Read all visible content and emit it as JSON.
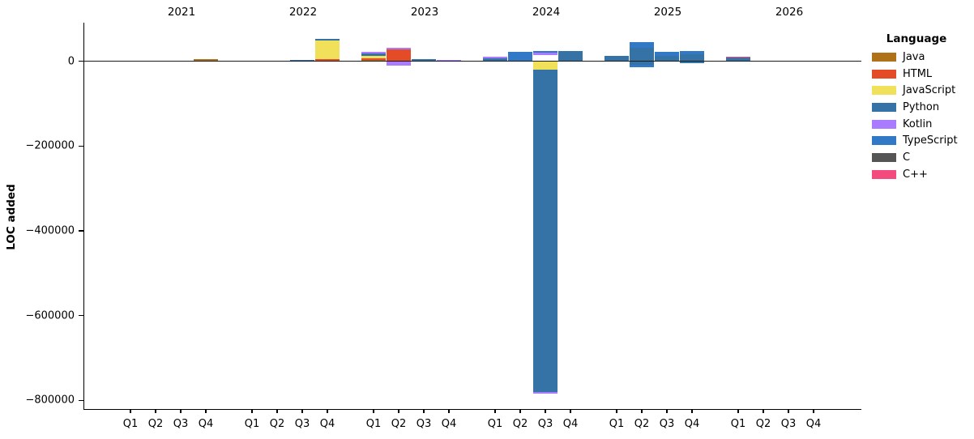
{
  "chart_data": {
    "type": "bar",
    "stacked": true,
    "title": "",
    "ylabel": "LOC added",
    "legend_title": "Language",
    "legend_position": "right-outside-top",
    "grid": false,
    "languages": [
      {
        "name": "Java",
        "color": "#b07219"
      },
      {
        "name": "HTML",
        "color": "#e34c26"
      },
      {
        "name": "JavaScript",
        "color": "#f1e05a"
      },
      {
        "name": "Python",
        "color": "#3572a5"
      },
      {
        "name": "Kotlin",
        "color": "#a97bff"
      },
      {
        "name": "TypeScript",
        "color": "#3178c6"
      },
      {
        "name": "C",
        "color": "#555555"
      },
      {
        "name": "C++",
        "color": "#f34b7d"
      }
    ],
    "years": [
      "2021",
      "2022",
      "2023",
      "2024",
      "2025",
      "2026"
    ],
    "quarter_labels": [
      "Q1",
      "Q2",
      "Q3",
      "Q4"
    ],
    "y_axis": {
      "min": -820000,
      "max": 91000,
      "ticks": [
        {
          "label": "0",
          "value": 0
        },
        {
          "label": "−200000",
          "value": -200000
        },
        {
          "label": "−400000",
          "value": -400000
        },
        {
          "label": "−600000",
          "value": -600000
        },
        {
          "label": "−800000",
          "value": -800000
        }
      ]
    },
    "bars": [
      {
        "year": "2021",
        "quarter": "Q4",
        "segments": [
          {
            "language": "Java",
            "from": 0,
            "to": 5500
          }
        ]
      },
      {
        "year": "2022",
        "quarter": "Q3",
        "segments": [
          {
            "language": "Python",
            "from": 0,
            "to": 3000
          }
        ]
      },
      {
        "year": "2022",
        "quarter": "Q4",
        "segments": [
          {
            "language": "HTML",
            "from": 0,
            "to": 4800
          },
          {
            "language": "JavaScript",
            "from": 4800,
            "to": 48000
          },
          {
            "language": "Python",
            "from": 48000,
            "to": 51800
          }
        ]
      },
      {
        "year": "2023",
        "quarter": "Q1",
        "segments": [
          {
            "language": "Java",
            "from": 0,
            "to": 3000
          },
          {
            "language": "HTML",
            "from": 3000,
            "to": 7000
          },
          {
            "language": "JavaScript",
            "from": 7000,
            "to": 12500
          },
          {
            "language": "Python",
            "from": 12500,
            "to": 17500
          },
          {
            "language": "Kotlin",
            "from": 17500,
            "to": 22500
          }
        ]
      },
      {
        "year": "2023",
        "quarter": "Q2",
        "segments": [
          {
            "language": "Kotlin",
            "from": -10000,
            "to": 32000
          },
          {
            "language": "HTML",
            "from": 0,
            "to": 28000
          }
        ]
      },
      {
        "year": "2023",
        "quarter": "Q3",
        "segments": [
          {
            "language": "Python",
            "from": 0,
            "to": 4500
          }
        ]
      },
      {
        "year": "2023",
        "quarter": "Q4",
        "segments": [
          {
            "language": "Kotlin",
            "from": 0,
            "to": 2500
          }
        ]
      },
      {
        "year": "2024",
        "quarter": "Q1",
        "segments": [
          {
            "language": "Python",
            "from": 0,
            "to": 6000
          },
          {
            "language": "Kotlin",
            "from": 6000,
            "to": 10500
          }
        ]
      },
      {
        "year": "2024",
        "quarter": "Q2",
        "segments": [
          {
            "language": "Python",
            "from": 0,
            "to": 2000
          },
          {
            "language": "TypeScript",
            "from": 2000,
            "to": 22000
          }
        ]
      },
      {
        "year": "2024",
        "quarter": "Q3",
        "segments": [
          {
            "language": "JavaScript",
            "from": 0,
            "to": -20000
          },
          {
            "language": "Python",
            "from": -20000,
            "to": -781000
          },
          {
            "language": "Kotlin",
            "from": -781000,
            "to": -785000
          },
          {
            "language": "Kotlin",
            "from": 15000,
            "to": 19500
          },
          {
            "language": "TypeScript",
            "from": 19500,
            "to": 23300
          }
        ]
      },
      {
        "year": "2024",
        "quarter": "Q4",
        "segments": [
          {
            "language": "Python",
            "from": 0,
            "to": 24000
          }
        ]
      },
      {
        "year": "2025",
        "quarter": "Q1",
        "segments": [
          {
            "language": "Python",
            "from": 0,
            "to": 12000
          }
        ]
      },
      {
        "year": "2025",
        "quarter": "Q2",
        "segments": [
          {
            "language": "Python",
            "from": 0,
            "to": 31000
          },
          {
            "language": "TypeScript",
            "from": 31000,
            "to": 45500
          },
          {
            "language": "Python",
            "from": 0,
            "to": -9000
          },
          {
            "language": "TypeScript",
            "from": -9000,
            "to": -15000
          }
        ]
      },
      {
        "year": "2025",
        "quarter": "Q3",
        "segments": [
          {
            "language": "Python",
            "from": 0,
            "to": 12000
          },
          {
            "language": "TypeScript",
            "from": 12000,
            "to": 23000
          }
        ]
      },
      {
        "year": "2025",
        "quarter": "Q4",
        "segments": [
          {
            "language": "Python",
            "from": 0,
            "to": 16000
          },
          {
            "language": "TypeScript",
            "from": 16000,
            "to": 25000
          },
          {
            "language": "Python",
            "from": 0,
            "to": -5000
          }
        ]
      },
      {
        "year": "2026",
        "quarter": "Q1",
        "segments": [
          {
            "language": "Python",
            "from": 0,
            "to": 8000
          },
          {
            "language": "C++",
            "from": 8000,
            "to": 11000
          }
        ]
      }
    ]
  }
}
